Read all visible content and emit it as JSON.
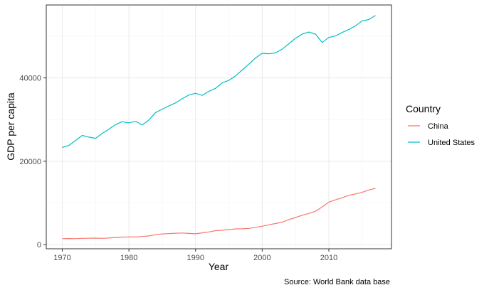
{
  "chart_data": {
    "type": "line",
    "xlabel": "Year",
    "ylabel": "GDP per capita",
    "caption": "Source: World Bank data base",
    "xlim": [
      1967.6,
      2019.4
    ],
    "ylim": [
      -1000,
      57500
    ],
    "x_ticks": [
      1970,
      1980,
      1990,
      2000,
      2010
    ],
    "y_ticks": [
      0,
      20000,
      40000
    ],
    "x_tick_labels": [
      "1970",
      "1980",
      "1990",
      "2000",
      "2010"
    ],
    "y_tick_labels": [
      "0",
      "20000",
      "40000"
    ],
    "grid": true,
    "legend": {
      "title": "Country",
      "placement": "right"
    },
    "x": [
      1970,
      1971,
      1972,
      1973,
      1974,
      1975,
      1976,
      1977,
      1978,
      1979,
      1980,
      1981,
      1982,
      1983,
      1984,
      1985,
      1986,
      1987,
      1988,
      1989,
      1990,
      1991,
      1992,
      1993,
      1994,
      1995,
      1996,
      1997,
      1998,
      1999,
      2000,
      2001,
      2002,
      2003,
      2004,
      2005,
      2006,
      2007,
      2008,
      2009,
      2010,
      2011,
      2012,
      2013,
      2014,
      2015,
      2016,
      2017
    ],
    "series": [
      {
        "name": "China",
        "color": "#F8766D",
        "values": [
          1400,
          1450,
          1420,
          1500,
          1520,
          1560,
          1500,
          1580,
          1720,
          1800,
          1850,
          1830,
          1950,
          2080,
          2380,
          2560,
          2640,
          2740,
          2780,
          2680,
          2600,
          2820,
          3050,
          3350,
          3450,
          3580,
          3780,
          3800,
          3900,
          4150,
          4400,
          4750,
          5050,
          5400,
          6000,
          6500,
          7050,
          7480,
          8000,
          9050,
          10200,
          10750,
          11250,
          11850,
          12150,
          12550,
          13100,
          13500
        ]
      },
      {
        "name": "United States",
        "color": "#00BFC4",
        "values": [
          23300,
          23800,
          25000,
          26200,
          25800,
          25500,
          26700,
          27700,
          28800,
          29500,
          29200,
          29600,
          28700,
          29900,
          31700,
          32500,
          33300,
          34000,
          35000,
          35900,
          36300,
          35800,
          36800,
          37500,
          38800,
          39400,
          40500,
          41900,
          43300,
          44800,
          45900,
          45800,
          46000,
          46900,
          48200,
          49500,
          50500,
          51000,
          50500,
          48500,
          49700,
          50100,
          50900,
          51600,
          52500,
          53700,
          54000,
          55000
        ]
      }
    ]
  }
}
